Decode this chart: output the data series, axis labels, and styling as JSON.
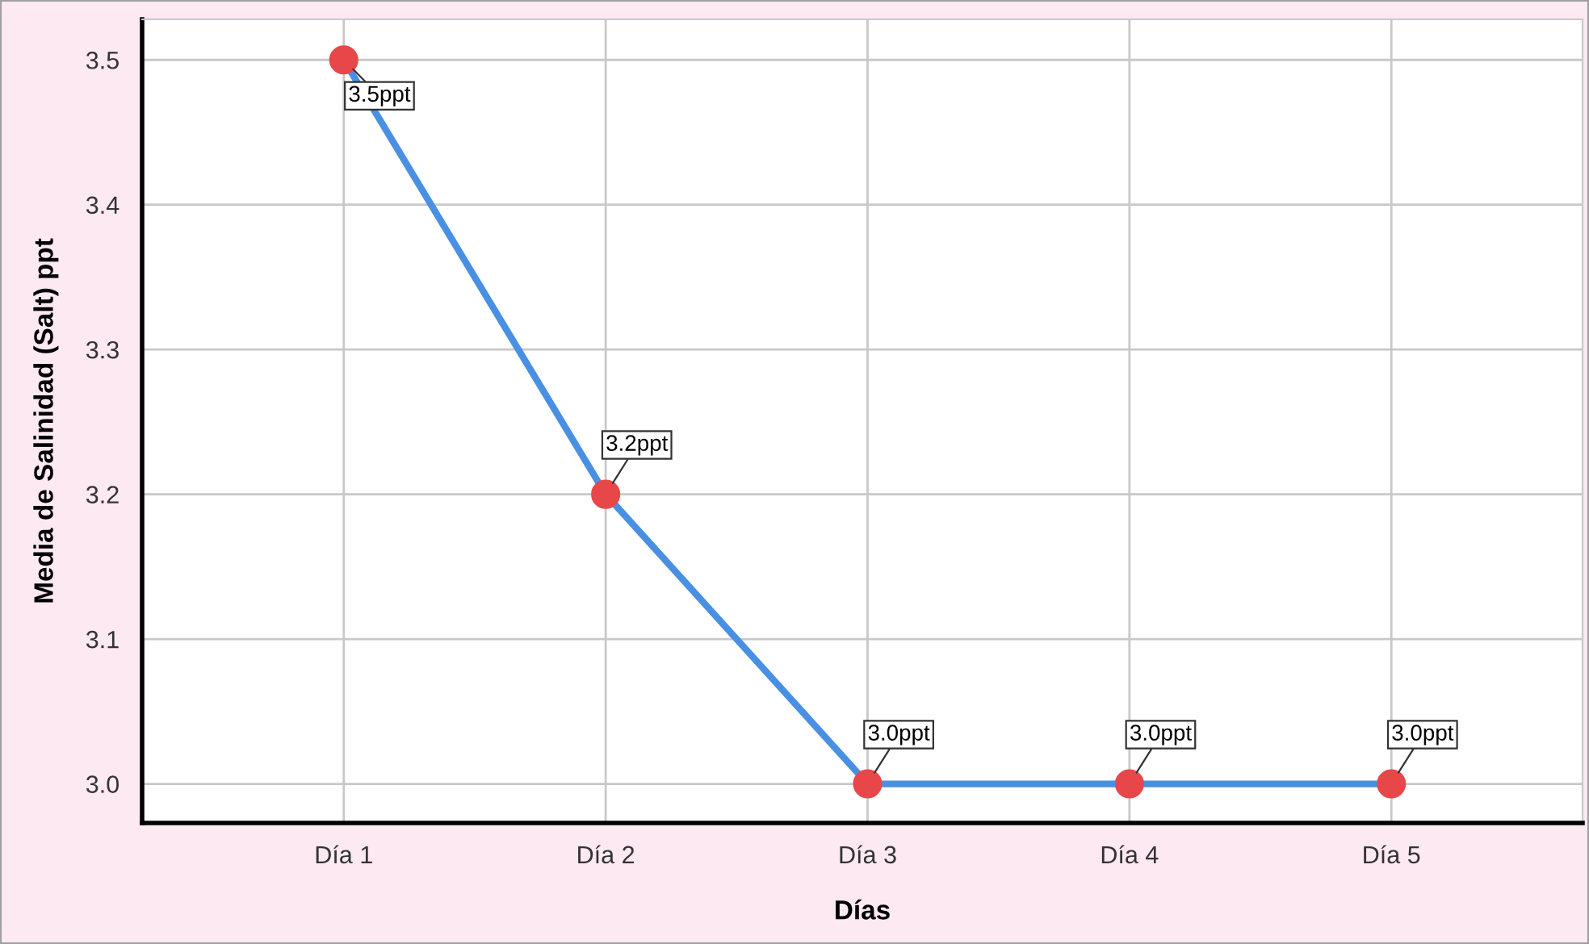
{
  "chart_data": {
    "type": "line",
    "xlabel": "Días",
    "ylabel": "Media de Salinidad (Salt) ppt",
    "categories": [
      "Día 1",
      "Día 2",
      "Día 3",
      "Día 4",
      "Día 5"
    ],
    "series": [
      {
        "color": "#4a90e2",
        "colors": [
          "#e8474a",
          "#e8474a",
          "#e8474a",
          "#e8474a",
          "#e8474a"
        ],
        "values": [
          3.5,
          3.2,
          3.0,
          3.0,
          3.0
        ],
        "value_labels": [
          "3.5ppt",
          "3.2ppt",
          "3.0ppt",
          "3.0ppt",
          "3.0ppt"
        ]
      }
    ],
    "ylim": [
      2.973,
      3.528
    ],
    "yticks": [
      {
        "value": 3,
        "label": "3.0"
      },
      3.1,
      3.2,
      3.3,
      3.4,
      3.5
    ],
    "grid": true,
    "marker": "circle",
    "line_style": "solid"
  }
}
